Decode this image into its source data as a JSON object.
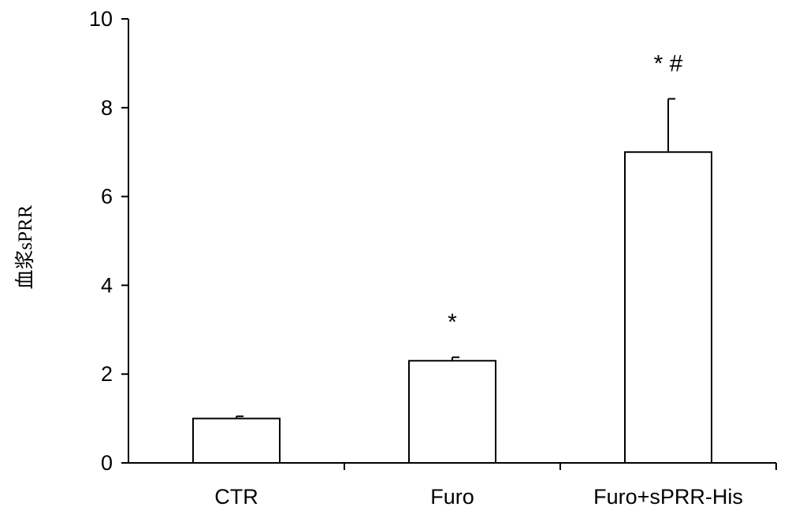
{
  "chart_data": {
    "type": "bar",
    "title": "",
    "xlabel": "",
    "ylabel": "血浆sPRR",
    "ylim": [
      0,
      10
    ],
    "yticks": [
      0,
      2,
      4,
      6,
      8,
      10
    ],
    "categories": [
      "CTR",
      "Furo",
      "Furo+sPRR-His"
    ],
    "values": [
      1.0,
      2.3,
      7.0
    ],
    "error_upper": [
      0.05,
      0.08,
      1.2
    ],
    "annotations": [
      "",
      "*",
      "* #"
    ],
    "grid": false,
    "legend": "none",
    "bar_fill": "#ffffff",
    "bar_stroke": "#000000"
  }
}
